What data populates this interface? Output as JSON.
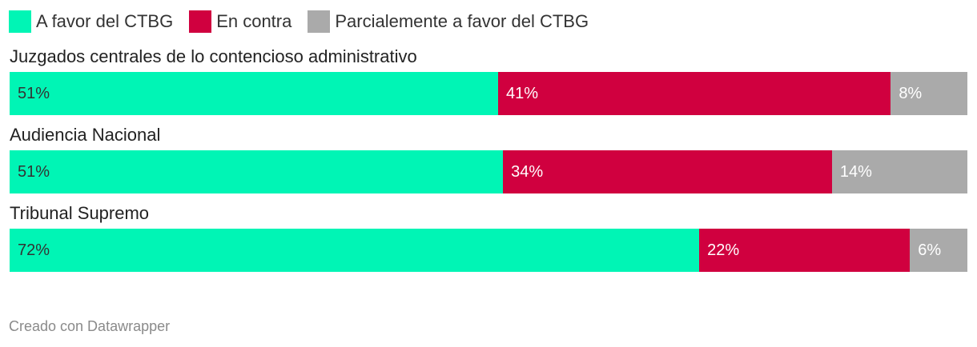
{
  "legend": [
    {
      "label": "A favor del CTBG",
      "color": "#00f5b5"
    },
    {
      "label": "En contra",
      "color": "#d0003f"
    },
    {
      "label": "Parcialemente a favor del CTBG",
      "color": "#aaaaaa"
    }
  ],
  "chart_data": {
    "type": "bar",
    "orientation": "horizontal",
    "stacked": true,
    "normalized": true,
    "categories": [
      "Juzgados centrales de lo contencioso administrativo",
      "Audiencia Nacional",
      "Tribunal Supremo"
    ],
    "series": [
      {
        "name": "A favor del CTBG",
        "color": "#00f5b5",
        "values": [
          51,
          51,
          72
        ],
        "labels": [
          "51%",
          "51%",
          "72%"
        ]
      },
      {
        "name": "En contra",
        "color": "#d0003f",
        "values": [
          41,
          34,
          22
        ],
        "labels": [
          "41%",
          "34%",
          "22%"
        ]
      },
      {
        "name": "Parcialemente a favor del CTBG",
        "color": "#aaaaaa",
        "values": [
          8,
          14,
          6
        ],
        "labels": [
          "8%",
          "14%",
          "6%"
        ]
      }
    ],
    "legend_position": "top-left"
  },
  "footer": "Creado con Datawrapper"
}
